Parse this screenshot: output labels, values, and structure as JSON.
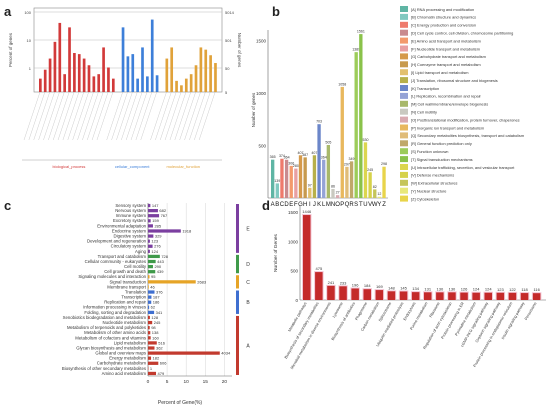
{
  "panel_letters": [
    "a",
    "b",
    "c",
    "d"
  ],
  "chart_data": [
    {
      "panel": "a",
      "type": "bar",
      "ylabel": "Percent of genes",
      "y2label": "Number of genes",
      "y_ticks": [
        "100",
        "10",
        "1"
      ],
      "y2_ticks": [
        "5014",
        "501",
        "50",
        "5"
      ],
      "groups": [
        {
          "name": "biological_process",
          "color": "#d23a3a",
          "values": [
            12,
            20,
            30,
            45,
            62,
            16,
            58,
            35,
            34,
            30,
            24,
            14,
            16,
            40,
            22,
            12
          ]
        },
        {
          "name": "cellular_component",
          "color": "#3d7fd9",
          "values": [
            58,
            32,
            34,
            12,
            40,
            14,
            65,
            15
          ]
        },
        {
          "name": "molecular_function",
          "color": "#e0a23a",
          "values": [
            30,
            40,
            10,
            6,
            12,
            16,
            24,
            40,
            38,
            33,
            26
          ]
        }
      ]
    },
    {
      "panel": "b",
      "type": "bar",
      "ylabel": "Number of genes",
      "y_ticks": [
        "1500",
        "1000",
        "500"
      ],
      "ylim": [
        0,
        1600
      ],
      "categories": [
        "A",
        "B",
        "C",
        "D",
        "E",
        "F",
        "G",
        "H",
        "I",
        "J",
        "K",
        "L",
        "M",
        "N",
        "O",
        "P",
        "Q",
        "R",
        "S",
        "T",
        "U",
        "V",
        "W",
        "Y",
        "Z"
      ],
      "values": [
        365,
        139,
        374,
        364,
        306,
        280,
        407,
        387,
        97,
        407,
        703,
        364,
        505,
        86,
        27,
        1058,
        297,
        349,
        1389,
        1561,
        530,
        245,
        82,
        12,
        298
      ],
      "value_labels": [
        "365",
        "139",
        "374",
        "364",
        "306",
        "280",
        "407",
        "387",
        "97",
        "407",
        "703",
        "364",
        "505",
        "86",
        "27",
        "1058",
        "297",
        "349",
        "1389",
        "1561",
        "530",
        "245",
        "82",
        "12",
        "298"
      ],
      "colors": [
        "#5fb5a4",
        "#80c9c0",
        "#ee7a6c",
        "#c98b8f",
        "#f39a6c",
        "#e8a0a2",
        "#d59a4a",
        "#c79a4d",
        "#e2c06e",
        "#b7b04a",
        "#6b86c9",
        "#95a3d6",
        "#a8b86a",
        "#c9c9c0",
        "#d9aab0",
        "#e8b85e",
        "#e0bc78",
        "#c0a86a",
        "#9ccc5a",
        "#8ac24a",
        "#dcd64e",
        "#d6d24a",
        "#c5c55a",
        "#e8e87a",
        "#e8d44a"
      ],
      "legend": [
        "[A] RNA processing and modification",
        "[B] Chromatin structure and dynamics",
        "[C] Energy production and conversion",
        "[D] Cell cycle control, cell division, chromosome partitioning",
        "[E] Amino acid transport and metabolism",
        "[F] Nucleotide transport and metabolism",
        "[G] Carbohydrate transport and metabolism",
        "[H] Coenzyme transport and metabolism",
        "[I] Lipid transport and metabolism",
        "[J] Translation, ribosomal structure and biogenesis",
        "[K] Transcription",
        "[L] Replication, recombination and repair",
        "[M] Cell wall/membrane/envelope biogenesis",
        "[N] Cell motility",
        "[O] Posttranslational modification, protein turnover, chaperones",
        "[P] Inorganic ion transport and metabolism",
        "[Q] Secondary metabolites biosynthesis, transport and catabolism",
        "[R] General function prediction only",
        "[S] Function unknown",
        "[T] Signal transduction mechanisms",
        "[U] Intracellular trafficking, secretion, and vesicular transport",
        "[V] Defense mechanisms",
        "[W] Extracellular structures",
        "[Y] Nuclear structure",
        "[Z] Cytoskeleton"
      ]
    },
    {
      "panel": "c",
      "type": "bar",
      "orientation": "horizontal",
      "xlabel": "Percent of Gene(%)",
      "x_ticks": [
        "0",
        "5",
        "10",
        "15",
        "20"
      ],
      "xlim": [
        0,
        22
      ],
      "groups": [
        {
          "letter": "E",
          "color": "#7b3fa0",
          "items": [
            {
              "name": "Sensory system",
              "value": 0.62,
              "label": "147"
            },
            {
              "name": "Nervous system",
              "value": 2.6,
              "label": "682"
            },
            {
              "name": "Immune system",
              "value": 2.9,
              "label": "767"
            },
            {
              "name": "Excretory system",
              "value": 0.7,
              "label": "159"
            },
            {
              "name": "Environmental adaptation",
              "value": 1.3,
              "label": "285"
            },
            {
              "name": "Endocrine system",
              "value": 8.6,
              "label": "1918"
            },
            {
              "name": "Digestive system",
              "value": 1.4,
              "label": "329"
            },
            {
              "name": "Development and regeneration",
              "value": 0.5,
              "label": "123"
            },
            {
              "name": "Circulatory system",
              "value": 1.2,
              "label": "276"
            },
            {
              "name": "Aging",
              "value": 0.5,
              "label": "124"
            }
          ]
        },
        {
          "letter": "D",
          "color": "#3f9a4a",
          "items": [
            {
              "name": "Transport and catabolism",
              "value": 3.1,
              "label": "728"
            },
            {
              "name": "Cellular community - eukaryotes",
              "value": 2.0,
              "label": "443"
            },
            {
              "name": "Cell motility",
              "value": 1.3,
              "label": "290"
            },
            {
              "name": "Cell growth and death",
              "value": 1.9,
              "label": "439"
            }
          ]
        },
        {
          "letter": "C",
          "color": "#e6a427",
          "items": [
            {
              "name": "Signaling molecules and interaction",
              "value": 0.4,
              "label": "95"
            },
            {
              "name": "Signal transduction",
              "value": 12.5,
              "label": "2683"
            },
            {
              "name": "Membrane transport",
              "value": 0.2,
              "label": "46"
            }
          ]
        },
        {
          "letter": "B",
          "color": "#3f6fd0",
          "items": [
            {
              "name": "Translation",
              "value": 1.7,
              "label": "376"
            },
            {
              "name": "Transcription",
              "value": 0.9,
              "label": "187"
            },
            {
              "name": "Replication and repair",
              "value": 0.85,
              "label": "186"
            },
            {
              "name": "Information processing in viruses",
              "value": 0.3,
              "label": "62"
            },
            {
              "name": "Folding, sorting and degradation",
              "value": 1.6,
              "label": "341"
            }
          ]
        },
        {
          "letter": "A",
          "color": "#c23a2e",
          "items": [
            {
              "name": "Xenobiotics biodegradation and metabolism",
              "value": 0.5,
              "label": "128"
            },
            {
              "name": "Nucleotide metabolism",
              "value": 1.1,
              "label": "245"
            },
            {
              "name": "Metabolism of terpenoids and polyketides",
              "value": 0.45,
              "label": "98"
            },
            {
              "name": "Metabolism of other amino acids",
              "value": 0.6,
              "label": "138"
            },
            {
              "name": "Metabolism of cofactors and vitamins",
              "value": 0.7,
              "label": "160"
            },
            {
              "name": "Lipid metabolism",
              "value": 2.3,
              "label": "516"
            },
            {
              "name": "Glycan biosynthesis and metabolism",
              "value": 1.7,
              "label": "362"
            },
            {
              "name": "Global and overview maps",
              "value": 18.8,
              "label": "4034"
            },
            {
              "name": "Energy metabolism",
              "value": 0.8,
              "label": "182"
            },
            {
              "name": "Carbohydrate metabolism",
              "value": 2.7,
              "label": "606"
            },
            {
              "name": "Biosynthesis of other secondary metabolites",
              "value": 0.05,
              "label": "1"
            },
            {
              "name": "Amino acid metabolism",
              "value": 2.1,
              "label": "479"
            }
          ]
        }
      ]
    },
    {
      "panel": "d",
      "type": "bar",
      "ylabel": "Number of Genes",
      "y_ticks": [
        "1500",
        "1000",
        "500",
        "0"
      ],
      "ylim": [
        0,
        1600
      ],
      "categories": [
        "Metabolic pathways",
        "Biosynthesis of secondary metabolites",
        "Microbial metabolism in diverse environments",
        "Lysosome",
        "Biosynthesis of antibiotics",
        "Phagosome",
        "Carbon metabolism",
        "Spliceosome",
        "Ubiquitin mediated proteolysis",
        "Endocytosis",
        "Purine metabolism",
        "Ribosome",
        "Regulation of actin cytoskeleton",
        "Protein processing in ER",
        "Pyrimidine metabolism",
        "cGMP-PKG signaling pathway",
        "Oxytocin signaling pathway",
        "Protein processing in endoplasmic reticulum",
        "Insulin signaling pathway",
        "Peroxisome"
      ],
      "values": [
        1446,
        475,
        241,
        233,
        196,
        184,
        169,
        148,
        145,
        134,
        131,
        130,
        130,
        126,
        124,
        124,
        123,
        122,
        118,
        116
      ],
      "value_labels": [
        "1446",
        "475",
        "241",
        "233",
        "196",
        "184",
        "169",
        "148",
        "145",
        "134",
        "131",
        "130",
        "130",
        "126",
        "124",
        "124",
        "123",
        "122",
        "118",
        "116"
      ],
      "color": "#c42a2a"
    }
  ]
}
